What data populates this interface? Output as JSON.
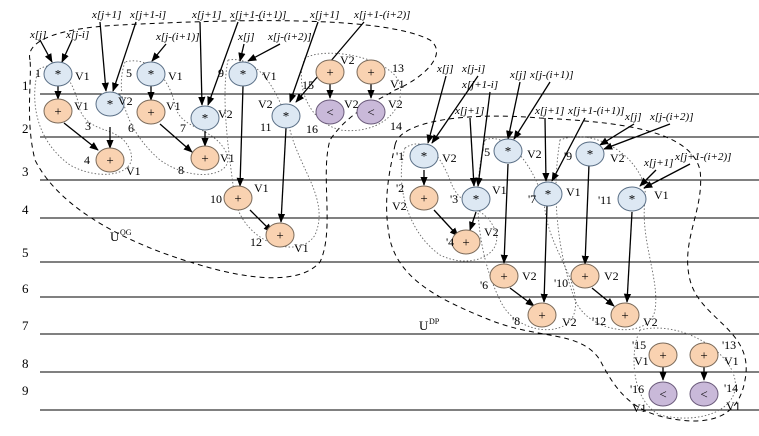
{
  "rows": [
    "1",
    "2",
    "3",
    "4",
    "5",
    "6",
    "7",
    "8",
    "9"
  ],
  "regions": [
    {
      "name": "U",
      "sup": "OG"
    },
    {
      "name": "U",
      "sup": "DP"
    }
  ],
  "og_nodes": [
    {
      "id": "og1",
      "op": "*",
      "kind": "mul",
      "num": "1",
      "ver": "V1"
    },
    {
      "id": "og2",
      "op": "+",
      "kind": "add",
      "num": "",
      "ver": "V1"
    },
    {
      "id": "og3",
      "op": "*",
      "kind": "mul",
      "num": "3",
      "ver": "V2"
    },
    {
      "id": "og4",
      "op": "+",
      "kind": "add",
      "num": "4",
      "ver": "V1"
    },
    {
      "id": "og5",
      "op": "*",
      "kind": "mul",
      "num": "5",
      "ver": "V1"
    },
    {
      "id": "og6",
      "op": "+",
      "kind": "add",
      "num": "6",
      "ver": "V1"
    },
    {
      "id": "og7",
      "op": "*",
      "kind": "mul",
      "num": "7",
      "ver": "V2"
    },
    {
      "id": "og8",
      "op": "+",
      "kind": "add",
      "num": "8",
      "ver": "V1"
    },
    {
      "id": "og9",
      "op": "*",
      "kind": "mul",
      "num": "9",
      "ver": "V1"
    },
    {
      "id": "og10",
      "op": "+",
      "kind": "add",
      "num": "10",
      "ver": "V1"
    },
    {
      "id": "og11",
      "op": "*",
      "kind": "mul",
      "num": "11",
      "ver": "V2"
    },
    {
      "id": "og12",
      "op": "+",
      "kind": "add",
      "num": "12",
      "ver": "V1"
    },
    {
      "id": "og13",
      "op": "+",
      "kind": "add",
      "num": "13",
      "ver": "V1"
    },
    {
      "id": "og14",
      "op": "<",
      "kind": "cmp",
      "num": "14",
      "ver": "V2"
    },
    {
      "id": "og15",
      "op": "+",
      "kind": "add",
      "num": "15",
      "ver": "V2"
    },
    {
      "id": "og16",
      "op": "<",
      "kind": "cmp",
      "num": "16",
      "ver": "V2"
    }
  ],
  "dp_nodes": [
    {
      "id": "dp1",
      "op": "*",
      "kind": "mul",
      "num": "'1",
      "ver": "V2"
    },
    {
      "id": "dp2",
      "op": "+",
      "kind": "add",
      "num": "'2",
      "ver": "V2"
    },
    {
      "id": "dp3",
      "op": "*",
      "kind": "mul",
      "num": "'3",
      "ver": "V1"
    },
    {
      "id": "dp4",
      "op": "+",
      "kind": "add",
      "num": "'4",
      "ver": "V2"
    },
    {
      "id": "dp5",
      "op": "*",
      "kind": "mul",
      "num": "'5",
      "ver": "V2"
    },
    {
      "id": "dp6",
      "op": "+",
      "kind": "add",
      "num": "'6",
      "ver": "V2"
    },
    {
      "id": "dp7",
      "op": "*",
      "kind": "mul",
      "num": "'7",
      "ver": "V1"
    },
    {
      "id": "dp8",
      "op": "+",
      "kind": "add",
      "num": "'8",
      "ver": "V2"
    },
    {
      "id": "dp9",
      "op": "*",
      "kind": "mul",
      "num": "'9",
      "ver": "V2"
    },
    {
      "id": "dp10",
      "op": "+",
      "kind": "add",
      "num": "'10",
      "ver": "V2"
    },
    {
      "id": "dp11",
      "op": "*",
      "kind": "mul",
      "num": "'11",
      "ver": "V1"
    },
    {
      "id": "dp12",
      "op": "+",
      "kind": "add",
      "num": "'12",
      "ver": "V2"
    },
    {
      "id": "dp13",
      "op": "+",
      "kind": "add",
      "num": "'13",
      "ver": "V1"
    },
    {
      "id": "dp14",
      "op": "<",
      "kind": "cmp",
      "num": "'14",
      "ver": "V1"
    },
    {
      "id": "dp15",
      "op": "+",
      "kind": "add",
      "num": "'15",
      "ver": "V1"
    },
    {
      "id": "dp16",
      "op": "<",
      "kind": "cmp",
      "num": "'16",
      "ver": "V1"
    }
  ],
  "inputs": [
    "x[j]",
    "x[j-i]",
    "x[j+1]",
    "x[j+1-i]",
    "x[j-(i+1)]",
    "x[j+1]",
    "x[j+1-(i+1)]",
    "x[j]",
    "x[j-(i+2)]",
    "x[j+1]",
    "x[j+1-(i+2)]",
    "x[j]",
    "x[j-i]",
    "x[j+1-i]",
    "x[j]",
    "x[j-(i+1)]",
    "x[j+1]",
    "x[j+1]",
    "x[j+1-(i+1)]",
    "x[j]",
    "x[j-(i+2)]",
    "x[j+1]",
    "x[j+1-(i+2)]"
  ]
}
